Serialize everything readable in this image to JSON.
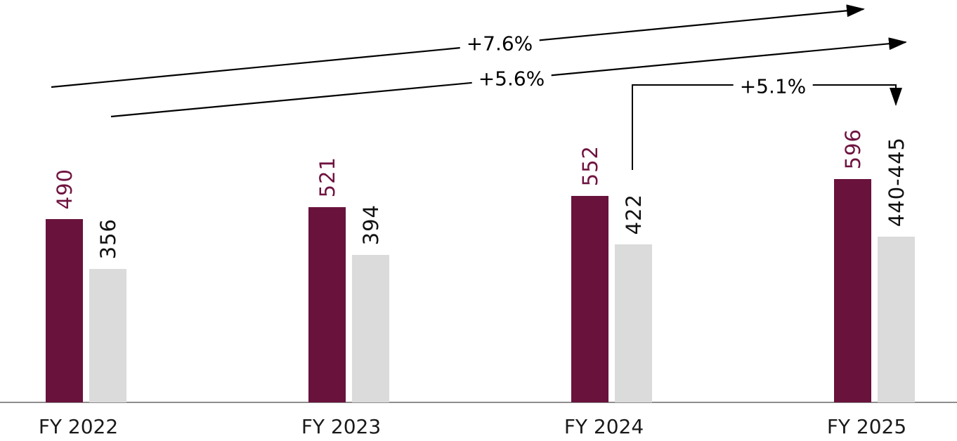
{
  "chart_data": {
    "type": "bar",
    "title": "",
    "xlabel": "",
    "ylabel": "",
    "grid": false,
    "legend": "none",
    "categories": [
      "FY 2022",
      "FY 2023",
      "FY 2024",
      "FY 2025"
    ],
    "series": [
      {
        "id": "primary",
        "color": "#69123C",
        "label_color": "#6F1340",
        "values": [
          {
            "label": "490",
            "value": 490
          },
          {
            "label": "521",
            "value": 521
          },
          {
            "label": "552",
            "value": 552
          },
          {
            "label": "596",
            "value": 596
          }
        ]
      },
      {
        "id": "secondary",
        "color": "#DBDBDC",
        "label_color": "#111111",
        "values": [
          {
            "label": "356",
            "value": 356
          },
          {
            "label": "394",
            "value": 394
          },
          {
            "label": "422",
            "value": 422
          },
          {
            "label": "440-445",
            "value": 442.5
          }
        ]
      }
    ],
    "annotations": [
      {
        "id": "growth-arrow-top",
        "label": "+7.6%"
      },
      {
        "id": "growth-arrow-middle",
        "label": "+5.6%"
      },
      {
        "id": "growth-bracket",
        "label": "+5.1%"
      }
    ],
    "colors": {
      "arrow": "#000000",
      "axis": "#8D8D8D",
      "background": "#FFFFFF"
    }
  }
}
